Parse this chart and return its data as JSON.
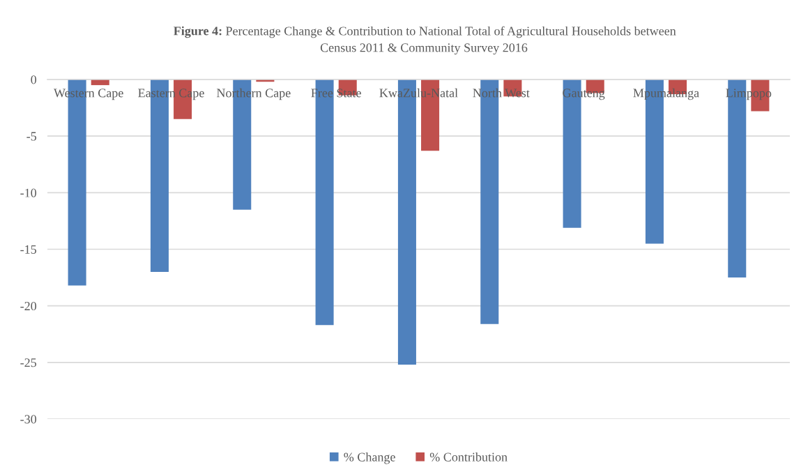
{
  "chart_data": {
    "type": "bar",
    "title": "Figure 4: Percentage Change & Contribution to National Total of Agricultural Households between\nCensus 2011 & Community Survey 2016",
    "categories": [
      "Western Cape",
      "Eastern Cape",
      "Northern Cape",
      "Free State",
      "KwaZulu-Natal",
      "North West",
      "Gauteng",
      "Mpumalanga",
      "Limpopo"
    ],
    "series": [
      {
        "name": "% Change",
        "color": "#4f81bd",
        "values": [
          -18.2,
          -17.0,
          -11.5,
          -21.7,
          -25.2,
          -21.6,
          -13.1,
          -14.5,
          -17.5
        ]
      },
      {
        "name": "% Contribution",
        "color": "#c0504d",
        "values": [
          -0.5,
          -3.5,
          -0.2,
          -1.4,
          -6.3,
          -1.5,
          -1.2,
          -1.3,
          -2.8
        ]
      }
    ],
    "ylim": [
      -30,
      0
    ],
    "yticks": [
      0,
      -5,
      -10,
      -15,
      -20,
      -25,
      -30
    ],
    "grid": "y",
    "legend": "bottom"
  }
}
